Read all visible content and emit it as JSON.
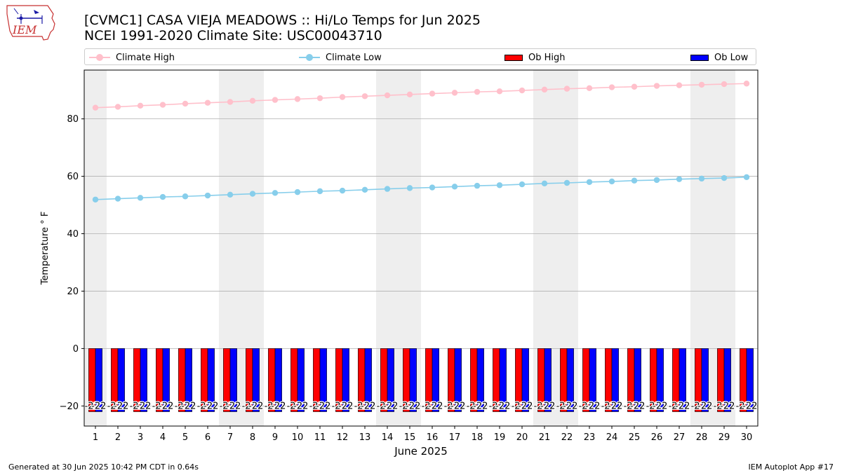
{
  "header": {
    "title_line1": "[CVMC1] CASA VIEJA MEADOWS :: Hi/Lo Temps for Jun 2025",
    "title_line2": "NCEI 1991-2020 Climate Site: USC00043710"
  },
  "logo": {
    "text": "IEM",
    "color": "#1a1aa6"
  },
  "footer": {
    "left": "Generated at 30 Jun 2025 10:42 PM CDT in 0.64s",
    "right": "IEM Autoplot App #17"
  },
  "colors": {
    "climate_high": "#ffc0cb",
    "climate_low": "#87ceeb",
    "ob_high": "#ff0000",
    "ob_low": "#0000ff",
    "weekend_shade": "#eeeeee",
    "grid": "#b0b0b0"
  },
  "chart_data": {
    "type": "bar",
    "xlabel": "June 2025",
    "ylabel": "Temperature ° F",
    "ylim": [
      -27,
      97
    ],
    "yticks": [
      -20,
      0,
      20,
      40,
      60,
      80
    ],
    "grid": true,
    "legend_position": "top",
    "categories": [
      "1",
      "2",
      "3",
      "4",
      "5",
      "6",
      "7",
      "8",
      "9",
      "10",
      "11",
      "12",
      "13",
      "14",
      "15",
      "16",
      "17",
      "18",
      "19",
      "20",
      "21",
      "22",
      "23",
      "24",
      "25",
      "26",
      "27",
      "28",
      "29",
      "30"
    ],
    "weekend_days": [
      1,
      7,
      8,
      14,
      15,
      21,
      22,
      28,
      29
    ],
    "series": [
      {
        "name": "Climate High",
        "kind": "line",
        "values": [
          83.9,
          84.2,
          84.6,
          84.9,
          85.3,
          85.6,
          85.9,
          86.3,
          86.6,
          86.9,
          87.2,
          87.6,
          87.9,
          88.2,
          88.5,
          88.8,
          89.1,
          89.4,
          89.6,
          89.9,
          90.2,
          90.5,
          90.7,
          91.0,
          91.2,
          91.5,
          91.7,
          91.9,
          92.1,
          92.3
        ]
      },
      {
        "name": "Climate Low",
        "kind": "line",
        "values": [
          51.9,
          52.2,
          52.5,
          52.8,
          53.0,
          53.3,
          53.6,
          53.9,
          54.2,
          54.5,
          54.8,
          55.0,
          55.3,
          55.6,
          55.9,
          56.1,
          56.4,
          56.7,
          56.9,
          57.2,
          57.5,
          57.7,
          58.0,
          58.2,
          58.5,
          58.7,
          59.0,
          59.2,
          59.4,
          59.7
        ]
      },
      {
        "name": "Ob High",
        "kind": "bar",
        "values": [
          -22,
          -22,
          -22,
          -22,
          -22,
          -22,
          -22,
          -22,
          -22,
          -22,
          -22,
          -22,
          -22,
          -22,
          -22,
          -22,
          -22,
          -22,
          -22,
          -22,
          -22,
          -22,
          -22,
          -22,
          -22,
          -22,
          -22,
          -22,
          -22,
          -22
        ],
        "labels": [
          "-22",
          "-22",
          "-22",
          "-22",
          "-22",
          "-22",
          "-22",
          "-22",
          "-22",
          "-22",
          "-22",
          "-22",
          "-22",
          "-22",
          "-22",
          "-22",
          "-22",
          "-22",
          "-22",
          "-22",
          "-22",
          "-22",
          "-22",
          "-22",
          "-22",
          "-22",
          "-22",
          "-22",
          "-22",
          "-22"
        ]
      },
      {
        "name": "Ob Low",
        "kind": "bar",
        "values": [
          -22,
          -22,
          -22,
          -22,
          -22,
          -22,
          -22,
          -22,
          -22,
          -22,
          -22,
          -22,
          -22,
          -22,
          -22,
          -22,
          -22,
          -22,
          -22,
          -22,
          -22,
          -22,
          -22,
          -22,
          -22,
          -22,
          -22,
          -22,
          -22,
          -22
        ],
        "labels": [
          "-22",
          "-22",
          "-22",
          "-22",
          "-22",
          "-22",
          "-22",
          "-22",
          "-22",
          "-22",
          "-22",
          "-22",
          "-22",
          "-22",
          "-22",
          "-22",
          "-22",
          "-22",
          "-22",
          "-22",
          "-22",
          "-22",
          "-22",
          "-22",
          "-22",
          "-22",
          "-22",
          "-22",
          "-22",
          "-22"
        ]
      }
    ]
  }
}
